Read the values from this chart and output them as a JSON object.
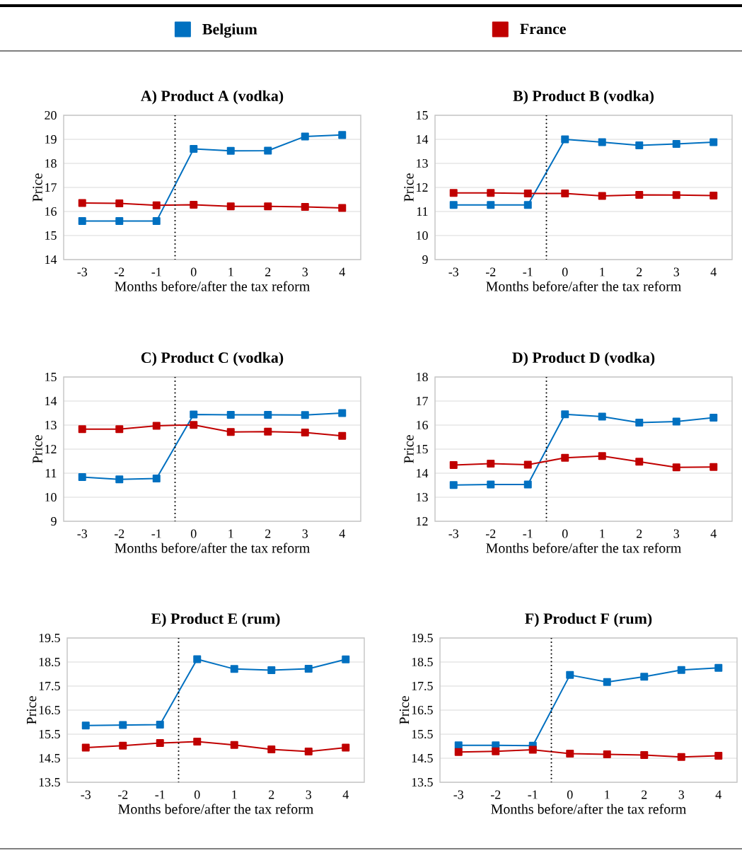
{
  "chart_data": [
    {
      "type": "line",
      "title": "A) Product A (vodka)",
      "xlabel": "Months before/after the tax reform",
      "ylabel": "Price",
      "x": [
        -3,
        -2,
        -1,
        0,
        1,
        2,
        3,
        4
      ],
      "xlim": [
        -3.5,
        4.5
      ],
      "xticks": [
        -3,
        -2,
        -1,
        0,
        1,
        2,
        3,
        4
      ],
      "ylim": [
        14,
        20
      ],
      "yticks": [
        14,
        15,
        16,
        17,
        18,
        19,
        20
      ],
      "grid": "y",
      "legend": "top",
      "marker": "square",
      "line_style": "solid",
      "series": [
        {
          "name": "Belgium",
          "color": "#0070c0",
          "values": [
            15.6,
            15.6,
            15.6,
            18.6,
            18.52,
            18.53,
            19.12,
            19.18
          ]
        },
        {
          "name": "France",
          "color": "#c00000",
          "values": [
            16.35,
            16.34,
            16.26,
            16.28,
            16.21,
            16.21,
            16.19,
            16.15
          ]
        }
      ],
      "ref_lines": [
        {
          "axis": "x",
          "value": -0.5,
          "color": "#000000",
          "line_style": "dotted"
        }
      ]
    },
    {
      "type": "line",
      "title": "B) Product B (vodka)",
      "xlabel": "Months before/after the tax reform",
      "ylabel": "Price",
      "x": [
        -3,
        -2,
        -1,
        0,
        1,
        2,
        3,
        4
      ],
      "xlim": [
        -3.5,
        4.5
      ],
      "xticks": [
        -3,
        -2,
        -1,
        0,
        1,
        2,
        3,
        4
      ],
      "ylim": [
        9,
        15
      ],
      "yticks": [
        9,
        10,
        11,
        12,
        13,
        14,
        15
      ],
      "grid": "y",
      "marker": "square",
      "line_style": "solid",
      "series": [
        {
          "color": "#0070c0",
          "values": [
            11.27,
            11.27,
            11.27,
            14.0,
            13.88,
            13.75,
            13.81,
            13.88
          ]
        },
        {
          "color": "#c00000",
          "values": [
            11.77,
            11.77,
            11.75,
            11.75,
            11.65,
            11.69,
            11.68,
            11.66
          ]
        }
      ],
      "ref_lines": [
        {
          "axis": "x",
          "value": -0.5,
          "color": "#000000",
          "line_style": "dotted"
        }
      ]
    },
    {
      "type": "line",
      "title": "C) Product C (vodka)",
      "xlabel": "Months before/after the tax reform",
      "ylabel": "Price",
      "x": [
        -3,
        -2,
        -1,
        0,
        1,
        2,
        3,
        4
      ],
      "xlim": [
        -3.5,
        4.5
      ],
      "xticks": [
        -3,
        -2,
        -1,
        0,
        1,
        2,
        3,
        4
      ],
      "ylim": [
        9,
        15
      ],
      "yticks": [
        9,
        10,
        11,
        12,
        13,
        14,
        15
      ],
      "grid": "y",
      "marker": "square",
      "line_style": "solid",
      "series": [
        {
          "color": "#0070c0",
          "values": [
            10.84,
            10.74,
            10.78,
            13.44,
            13.43,
            13.43,
            13.42,
            13.5
          ]
        },
        {
          "color": "#c00000",
          "values": [
            12.83,
            12.83,
            12.97,
            13.01,
            12.71,
            12.73,
            12.69,
            12.55
          ]
        }
      ],
      "ref_lines": [
        {
          "axis": "x",
          "value": -0.5,
          "color": "#000000",
          "line_style": "dotted"
        }
      ]
    },
    {
      "type": "line",
      "title": "D) Product D (vodka)",
      "xlabel": "Months before/after the tax reform",
      "ylabel": "Price",
      "x": [
        -3,
        -2,
        -1,
        0,
        1,
        2,
        3,
        4
      ],
      "xlim": [
        -3.5,
        4.5
      ],
      "xticks": [
        -3,
        -2,
        -1,
        0,
        1,
        2,
        3,
        4
      ],
      "ylim": [
        12,
        18
      ],
      "yticks": [
        12,
        13,
        14,
        15,
        16,
        17,
        18
      ],
      "grid": "y",
      "marker": "square",
      "line_style": "solid",
      "series": [
        {
          "color": "#0070c0",
          "values": [
            13.51,
            13.53,
            13.53,
            16.45,
            16.35,
            16.1,
            16.15,
            16.31
          ]
        },
        {
          "color": "#c00000",
          "values": [
            14.34,
            14.4,
            14.35,
            14.64,
            14.71,
            14.48,
            14.24,
            14.26
          ]
        }
      ],
      "ref_lines": [
        {
          "axis": "x",
          "value": -0.5,
          "color": "#000000",
          "line_style": "dotted"
        }
      ]
    },
    {
      "type": "line",
      "title": "E) Product E (rum)",
      "xlabel": "Months before/after the tax reform",
      "ylabel": "Price",
      "x": [
        -3,
        -2,
        -1,
        0,
        1,
        2,
        3,
        4
      ],
      "xlim": [
        -3.5,
        4.5
      ],
      "xticks": [
        -3,
        -2,
        -1,
        0,
        1,
        2,
        3,
        4
      ],
      "ylim": [
        13.5,
        19.5
      ],
      "yticks": [
        13.5,
        14.5,
        15.5,
        16.5,
        17.5,
        18.5,
        19.5
      ],
      "grid": "y",
      "marker": "square",
      "line_style": "solid",
      "series": [
        {
          "color": "#0070c0",
          "values": [
            15.86,
            15.88,
            15.9,
            18.62,
            18.21,
            18.16,
            18.22,
            18.61
          ]
        },
        {
          "color": "#c00000",
          "values": [
            14.94,
            15.02,
            15.13,
            15.19,
            15.05,
            14.87,
            14.78,
            14.94
          ]
        }
      ],
      "ref_lines": [
        {
          "axis": "x",
          "value": -0.5,
          "color": "#000000",
          "line_style": "dotted"
        }
      ]
    },
    {
      "type": "line",
      "title": "F) Product F (rum)",
      "xlabel": "Months before/after the tax reform",
      "ylabel": "Price",
      "x": [
        -3,
        -2,
        -1,
        0,
        1,
        2,
        3,
        4
      ],
      "xlim": [
        -3.5,
        4.5
      ],
      "xticks": [
        -3,
        -2,
        -1,
        0,
        1,
        2,
        3,
        4
      ],
      "ylim": [
        13.5,
        19.5
      ],
      "yticks": [
        13.5,
        14.5,
        15.5,
        16.5,
        17.5,
        18.5,
        19.5
      ],
      "grid": "y",
      "marker": "square",
      "line_style": "solid",
      "series": [
        {
          "color": "#0070c0",
          "values": [
            15.04,
            15.04,
            15.02,
            17.96,
            17.67,
            17.89,
            18.17,
            18.26
          ]
        },
        {
          "color": "#c00000",
          "values": [
            14.76,
            14.79,
            14.85,
            14.69,
            14.66,
            14.63,
            14.55,
            14.6
          ]
        }
      ],
      "ref_lines": [
        {
          "axis": "x",
          "value": -0.5,
          "color": "#000000",
          "line_style": "dotted"
        }
      ]
    }
  ]
}
